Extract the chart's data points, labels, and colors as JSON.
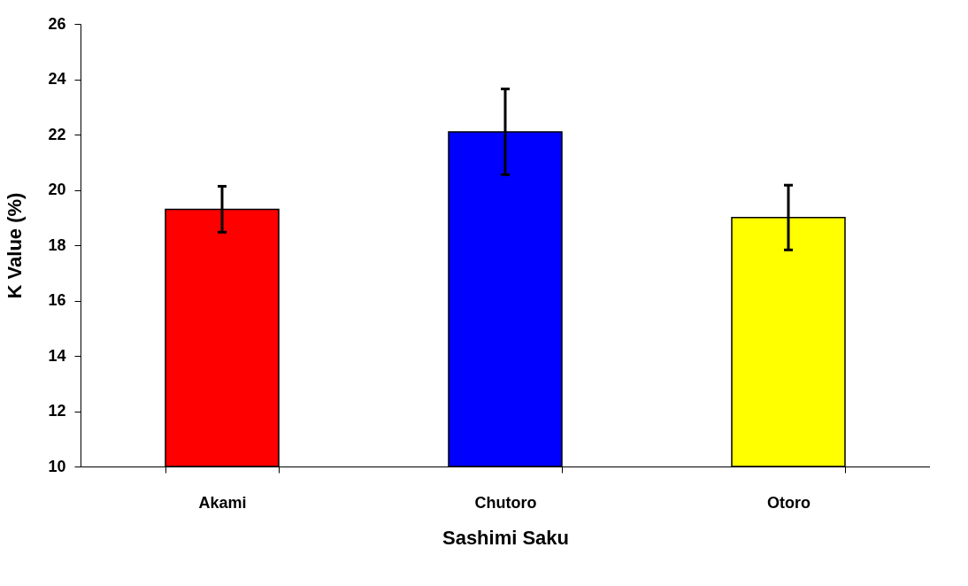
{
  "chart_data": {
    "type": "bar",
    "xlabel": "Sashimi Saku",
    "ylabel": "K Value (%)",
    "categories": [
      "Akami",
      "Chutoro",
      "Otoro"
    ],
    "values": [
      19.3,
      22.1,
      19.0
    ],
    "colors": [
      "#ff0000",
      "#0000ff",
      "#ffff00"
    ],
    "errors": [
      0.83,
      1.55,
      1.17
    ],
    "ylim": [
      10,
      26
    ],
    "yticks": [
      10,
      12,
      14,
      16,
      18,
      20,
      22,
      24,
      26
    ],
    "grid": false
  }
}
